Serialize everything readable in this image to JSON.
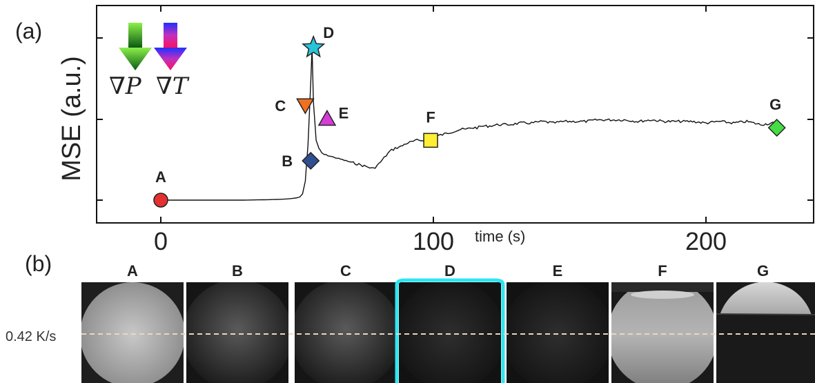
{
  "panel_a_label": "(a)",
  "panel_b_label": "(b)",
  "rate_label": "0.42 K/s",
  "gradient_labels": {
    "pressure": "∇P",
    "temperature": "∇T"
  },
  "colors": {
    "A": "#e53030",
    "B": "#2f4f8f",
    "C": "#f07020",
    "D": "#29c4d8",
    "E": "#d63cd6",
    "F": "#ffee33",
    "G": "#44dd44",
    "highlight": "#2ee6f0"
  },
  "chart_data": {
    "type": "line",
    "title": "",
    "xlabel": "time (s)",
    "ylabel": "MSE (a.u.)",
    "xlim": [
      -24,
      240
    ],
    "xticks": [
      0,
      100,
      200
    ],
    "ylim": [
      0,
      1
    ],
    "yticks": [],
    "grid": false,
    "series": [
      {
        "x": [
          0,
          10,
          20,
          30,
          40,
          45,
          48,
          50,
          51,
          52,
          53,
          54,
          55,
          55.5,
          56,
          57,
          58,
          59,
          60,
          62,
          64,
          66,
          68,
          70,
          72,
          74,
          76,
          78,
          80,
          82,
          84,
          86,
          88,
          90,
          92,
          94,
          96,
          98,
          100,
          102,
          104,
          106,
          108,
          110,
          112,
          114,
          116,
          118,
          120,
          124,
          128,
          132,
          136,
          140,
          144,
          148,
          152,
          156,
          160,
          165,
          170,
          175,
          180,
          185,
          190,
          195,
          200,
          205,
          210,
          215,
          220,
          225,
          228
        ],
        "y": [
          0.0,
          0.0,
          0.0,
          0.0,
          0.003,
          0.006,
          0.01,
          0.015,
          0.02,
          0.04,
          0.12,
          0.35,
          0.75,
          0.97,
          0.62,
          0.38,
          0.33,
          0.3,
          0.29,
          0.28,
          0.27,
          0.26,
          0.25,
          0.24,
          0.23,
          0.22,
          0.21,
          0.2,
          0.23,
          0.27,
          0.31,
          0.33,
          0.34,
          0.36,
          0.37,
          0.38,
          0.38,
          0.39,
          0.4,
          0.41,
          0.42,
          0.43,
          0.44,
          0.45,
          0.45,
          0.46,
          0.46,
          0.47,
          0.47,
          0.48,
          0.48,
          0.49,
          0.49,
          0.5,
          0.49,
          0.5,
          0.5,
          0.5,
          0.51,
          0.51,
          0.51,
          0.5,
          0.51,
          0.5,
          0.5,
          0.5,
          0.49,
          0.5,
          0.49,
          0.5,
          0.48,
          0.49,
          0.48
        ]
      }
    ],
    "markers": [
      {
        "label": "A",
        "x": 0,
        "y": 0.0,
        "shape": "circle"
      },
      {
        "label": "B",
        "x": 55,
        "y": 0.25,
        "shape": "diamond"
      },
      {
        "label": "C",
        "x": 53,
        "y": 0.6,
        "shape": "triangle-down"
      },
      {
        "label": "D",
        "x": 56,
        "y": 0.97,
        "shape": "star"
      },
      {
        "label": "E",
        "x": 61,
        "y": 0.52,
        "shape": "triangle-up"
      },
      {
        "label": "F",
        "x": 99,
        "y": 0.38,
        "shape": "square"
      },
      {
        "label": "G",
        "x": 226,
        "y": 0.46,
        "shape": "diamond"
      }
    ]
  },
  "frames": [
    {
      "label": "A",
      "tone": "bright-full"
    },
    {
      "label": "B",
      "tone": "dim"
    },
    {
      "label": "C",
      "tone": "dim"
    },
    {
      "label": "D",
      "tone": "dark",
      "highlighted": true
    },
    {
      "label": "E",
      "tone": "dark"
    },
    {
      "label": "F",
      "tone": "bright-lower"
    },
    {
      "label": "G",
      "tone": "bright-cap"
    }
  ]
}
